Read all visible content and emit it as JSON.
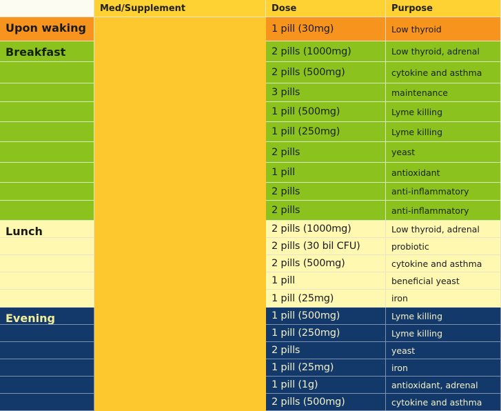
{
  "header": {
    "time": "",
    "med": "Med/Supplement",
    "dose": "Dose",
    "purpose": "Purpose"
  },
  "groups": [
    {
      "time": "Upon waking",
      "rows": [
        {
          "dose": "1 pill (30mg)",
          "purpose": "Low thyroid"
        }
      ]
    },
    {
      "time": "Breakfast",
      "rows": [
        {
          "dose": "2 pills (1000mg)",
          "purpose": "Low thyroid, adrenal"
        },
        {
          "dose": "2 pills (500mg)",
          "purpose": "cytokine and asthma"
        },
        {
          "dose": "3 pills",
          "purpose": "maintenance"
        },
        {
          "dose": "1 pill (500mg)",
          "purpose": "Lyme killing"
        },
        {
          "dose": "1 pill (250mg)",
          "purpose": "Lyme killing"
        },
        {
          "dose": "2 pills",
          "purpose": "yeast"
        },
        {
          "dose": "1 pill",
          "purpose": "antioxidant"
        },
        {
          "dose": "2 pills",
          "purpose": "anti-inflammatory"
        },
        {
          "dose": "2 pills",
          "purpose": "anti-inflammatory"
        }
      ]
    },
    {
      "time": "Lunch",
      "rows": [
        {
          "dose": "2 pills (1000mg)",
          "purpose": "Low thyroid, adrenal"
        },
        {
          "dose": "2 pills (30 bil CFU)",
          "purpose": "probiotic"
        },
        {
          "dose": "2 pills (500mg)",
          "purpose": "cytokine and asthma"
        },
        {
          "dose": "1 pill",
          "purpose": "beneficial yeast"
        },
        {
          "dose": "1 pill (25mg)",
          "purpose": "iron"
        }
      ]
    },
    {
      "time": "Evening",
      "rows": [
        {
          "dose": "1 pill (500mg)",
          "purpose": "Lyme killing"
        },
        {
          "dose": "1 pill (250mg)",
          "purpose": "Lyme killing"
        },
        {
          "dose": "2 pills",
          "purpose": "yeast"
        },
        {
          "dose": "1 pill (25mg)",
          "purpose": "iron"
        },
        {
          "dose": "1 pill (1g)",
          "purpose": "antioxidant, adrenal"
        },
        {
          "dose": "2 pills (500mg)",
          "purpose": "cytokine and asthma"
        }
      ]
    }
  ]
}
